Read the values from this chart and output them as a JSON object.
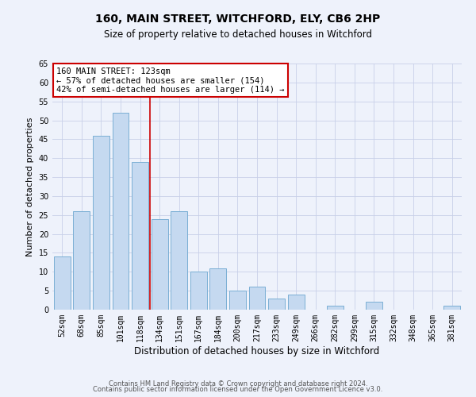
{
  "title": "160, MAIN STREET, WITCHFORD, ELY, CB6 2HP",
  "subtitle": "Size of property relative to detached houses in Witchford",
  "xlabel": "Distribution of detached houses by size in Witchford",
  "ylabel": "Number of detached properties",
  "categories": [
    "52sqm",
    "68sqm",
    "85sqm",
    "101sqm",
    "118sqm",
    "134sqm",
    "151sqm",
    "167sqm",
    "184sqm",
    "200sqm",
    "217sqm",
    "233sqm",
    "249sqm",
    "266sqm",
    "282sqm",
    "299sqm",
    "315sqm",
    "332sqm",
    "348sqm",
    "365sqm",
    "381sqm"
  ],
  "values": [
    14,
    26,
    46,
    52,
    39,
    24,
    26,
    10,
    11,
    5,
    6,
    3,
    4,
    0,
    1,
    0,
    2,
    0,
    0,
    0,
    1
  ],
  "bar_color": "#c5d9f0",
  "bar_edge_color": "#7bafd4",
  "vline_x": 4.5,
  "vline_color": "#cc0000",
  "ylim": [
    0,
    65
  ],
  "yticks": [
    0,
    5,
    10,
    15,
    20,
    25,
    30,
    35,
    40,
    45,
    50,
    55,
    60,
    65
  ],
  "annotation_line1": "160 MAIN STREET: 123sqm",
  "annotation_line2": "← 57% of detached houses are smaller (154)",
  "annotation_line3": "42% of semi-detached houses are larger (114) →",
  "annotation_box_color": "#ffffff",
  "annotation_box_edge": "#cc0000",
  "footer1": "Contains HM Land Registry data © Crown copyright and database right 2024.",
  "footer2": "Contains public sector information licensed under the Open Government Licence v3.0.",
  "background_color": "#eef2fb",
  "grid_color": "#c8d0e8",
  "title_fontsize": 10,
  "subtitle_fontsize": 8.5,
  "ylabel_fontsize": 8,
  "xlabel_fontsize": 8.5,
  "tick_fontsize": 7,
  "annot_fontsize": 7.5,
  "footer_fontsize": 6
}
